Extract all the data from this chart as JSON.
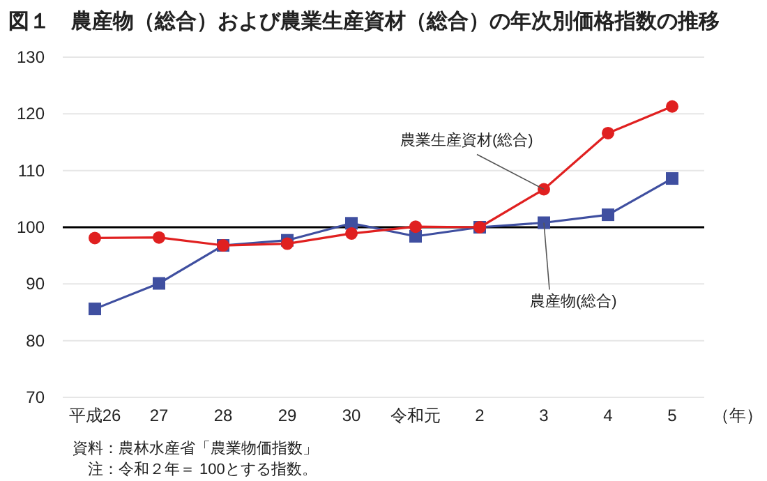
{
  "chart_data": {
    "type": "line",
    "title": "図１　農産物（総合）および農業生産資材（総合）の年次別価格指数の推移",
    "xlabel": "（年）",
    "categories": [
      "平成26",
      "27",
      "28",
      "29",
      "30",
      "令和元",
      "2",
      "3",
      "4",
      "5"
    ],
    "series": [
      {
        "color": "#3f4fa0",
        "marker": "square",
        "values": [
          85.6,
          90.1,
          96.8,
          97.7,
          100.7,
          98.4,
          100,
          100.8,
          102.2,
          108.6
        ]
      },
      {
        "color": "#e02020",
        "marker": "circle",
        "values": [
          98.1,
          98.2,
          96.8,
          97.1,
          98.9,
          100.1,
          100,
          106.7,
          116.6,
          121.3
        ]
      }
    ],
    "ylim": [
      70,
      130
    ],
    "yticks": [
      70,
      80,
      90,
      100,
      110,
      120,
      130
    ],
    "grid": "y",
    "ref_lines": [
      {
        "axis": "y",
        "value": 100,
        "color": "#000000"
      }
    ],
    "annotations": [
      {
        "text": "農業生産資材(総合)",
        "x": "3",
        "y": 106.7
      },
      {
        "text": "農産物(総合)",
        "x": "3",
        "y": 100.8
      },
      "資料：農林水産省「農業物価指数」",
      "　注：令和２年＝ 100とする指数。"
    ]
  }
}
